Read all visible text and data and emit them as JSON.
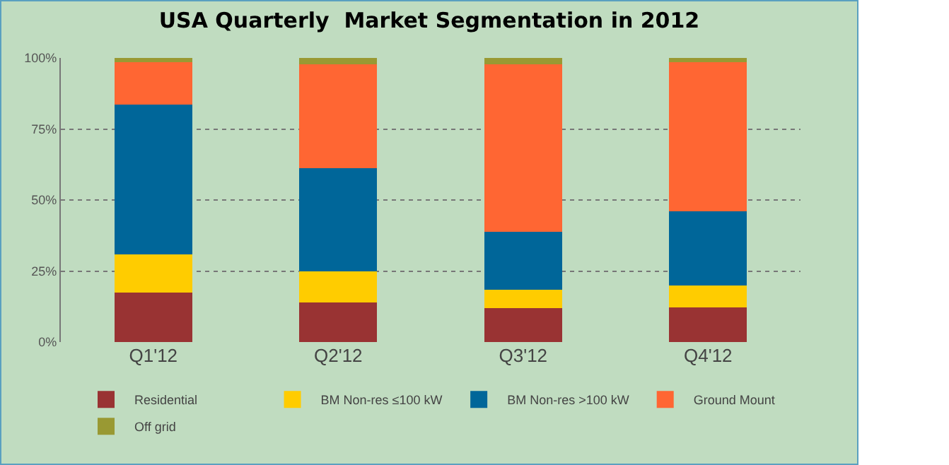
{
  "chart_data": {
    "type": "bar",
    "stacked": true,
    "title": "USA Quarterly  Market Segmentation in 2012",
    "categories": [
      "Q1'12",
      "Q2'12",
      "Q3'12",
      "Q4'12"
    ],
    "series": [
      {
        "name": "Residential",
        "color": "#993333",
        "values": [
          17.5,
          14,
          12,
          12.3
        ]
      },
      {
        "name": "BM Non-res ≤100 kW",
        "color": "#ffcc00",
        "values": [
          13.3,
          11,
          6.3,
          7.6
        ]
      },
      {
        "name": "BM Non-res >100 kW",
        "color": "#006699",
        "values": [
          52.9,
          36.2,
          20.5,
          26.1
        ]
      },
      {
        "name": "Ground Mount",
        "color": "#ff6633",
        "values": [
          14.8,
          36.5,
          58.9,
          52.6
        ]
      },
      {
        "name": "Off grid",
        "color": "#999933",
        "values": [
          1.5,
          2.3,
          2.3,
          1.4
        ]
      }
    ],
    "ylim": [
      0,
      100
    ],
    "yticks": [
      {
        "value": 0,
        "label": "0%"
      },
      {
        "value": 25,
        "label": "25%"
      },
      {
        "value": 50,
        "label": "50%"
      },
      {
        "value": 75,
        "label": "75%"
      },
      {
        "value": 100,
        "label": "100%"
      }
    ],
    "grid": "y",
    "legend": "bottom"
  }
}
